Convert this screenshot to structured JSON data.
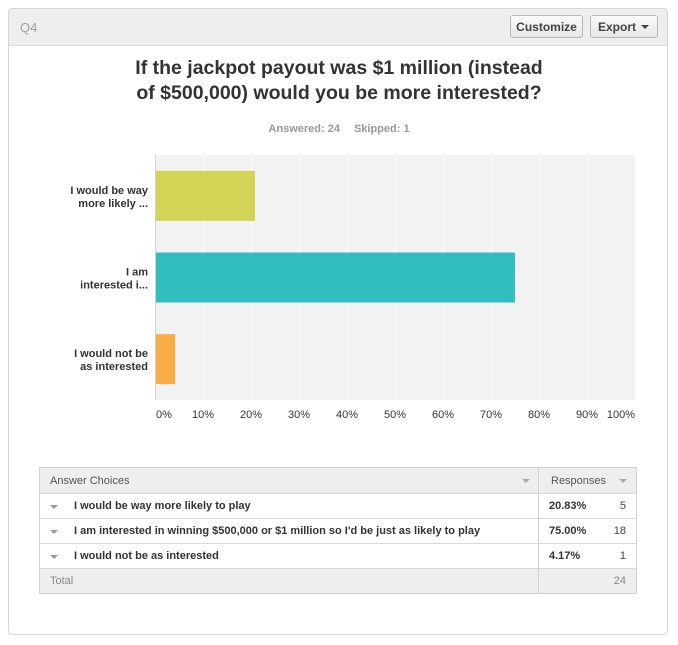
{
  "header": {
    "question_number": "Q4",
    "customize_label": "Customize",
    "export_label": "Export"
  },
  "question": {
    "title_line1": "If the jackpot payout was $1 million (instead",
    "title_line2": "of $500,000) would you be more interested?",
    "answered": "Answered: 24",
    "skipped": "Skipped: 1"
  },
  "chart_data": {
    "type": "bar",
    "orientation": "horizontal",
    "categories": [
      [
        "I would be way",
        "more likely ..."
      ],
      [
        "I am",
        "interested i..."
      ],
      [
        "I would not be",
        "as interested"
      ]
    ],
    "values": [
      20.83,
      75.0,
      4.17
    ],
    "colors": [
      "#d1d454",
      "#32bebe",
      "#f8ad47"
    ],
    "xlim": [
      0,
      100
    ],
    "ticks": [
      "0%",
      "10%",
      "20%",
      "30%",
      "40%",
      "50%",
      "60%",
      "70%",
      "80%",
      "90%",
      "100%"
    ],
    "grid": true
  },
  "table": {
    "col_choices": "Answer Choices",
    "col_responses": "Responses",
    "rows": [
      {
        "choice": "I would be way more likely to play",
        "percent": "20.83%",
        "count": "5"
      },
      {
        "choice": "I am interested in winning $500,000 or $1 million so I'd be just as likely to play",
        "percent": "75.00%",
        "count": "18"
      },
      {
        "choice": "I would not be as interested",
        "percent": "4.17%",
        "count": "1"
      }
    ],
    "total_label": "Total",
    "total_count": "24"
  }
}
